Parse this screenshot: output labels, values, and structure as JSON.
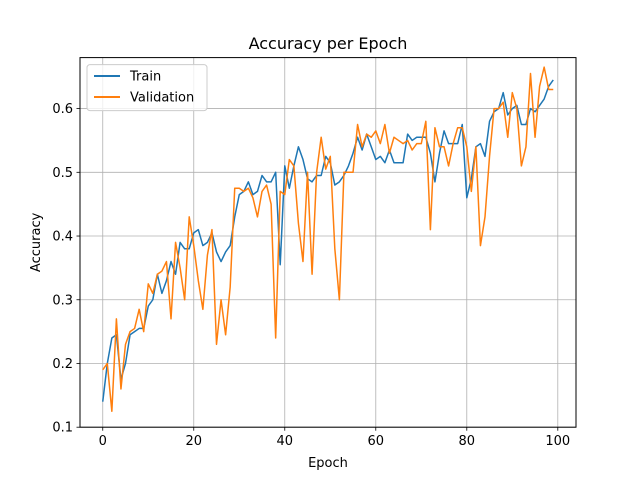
{
  "chart_data": {
    "type": "line",
    "title": "Accuracy per Epoch",
    "xlabel": "Epoch",
    "ylabel": "Accuracy",
    "xlim": [
      -5,
      104
    ],
    "ylim": [
      0.1,
      0.68
    ],
    "xticks": [
      0,
      20,
      40,
      60,
      80,
      100
    ],
    "yticks": [
      0.1,
      0.2,
      0.3,
      0.4,
      0.5,
      0.6
    ],
    "grid": true,
    "legend_position": "top-left",
    "series": [
      {
        "name": "Train",
        "color": "#1f77b4",
        "x": [
          0,
          1,
          2,
          3,
          4,
          5,
          6,
          7,
          8,
          9,
          10,
          11,
          12,
          13,
          14,
          15,
          16,
          17,
          18,
          19,
          20,
          21,
          22,
          23,
          24,
          25,
          26,
          27,
          28,
          29,
          30,
          31,
          32,
          33,
          34,
          35,
          36,
          37,
          38,
          39,
          40,
          41,
          42,
          43,
          44,
          45,
          46,
          47,
          48,
          49,
          50,
          51,
          52,
          53,
          54,
          55,
          56,
          57,
          58,
          59,
          60,
          61,
          62,
          63,
          64,
          65,
          66,
          67,
          68,
          69,
          70,
          71,
          72,
          73,
          74,
          75,
          76,
          77,
          78,
          79,
          80,
          81,
          82,
          83,
          84,
          85,
          86,
          87,
          88,
          89,
          90,
          91,
          92,
          93,
          94,
          95,
          96,
          97,
          98,
          99
        ],
        "values": [
          0.14,
          0.2,
          0.24,
          0.245,
          0.175,
          0.2,
          0.245,
          0.25,
          0.255,
          0.255,
          0.29,
          0.3,
          0.34,
          0.31,
          0.33,
          0.36,
          0.34,
          0.39,
          0.38,
          0.38,
          0.405,
          0.41,
          0.385,
          0.39,
          0.405,
          0.375,
          0.36,
          0.375,
          0.385,
          0.43,
          0.465,
          0.47,
          0.485,
          0.465,
          0.47,
          0.495,
          0.485,
          0.485,
          0.5,
          0.355,
          0.51,
          0.475,
          0.51,
          0.54,
          0.52,
          0.49,
          0.485,
          0.495,
          0.495,
          0.525,
          0.515,
          0.48,
          0.485,
          0.495,
          0.51,
          0.53,
          0.555,
          0.535,
          0.56,
          0.54,
          0.52,
          0.525,
          0.515,
          0.535,
          0.515,
          0.515,
          0.515,
          0.56,
          0.55,
          0.555,
          0.555,
          0.555,
          0.53,
          0.485,
          0.53,
          0.565,
          0.545,
          0.545,
          0.545,
          0.575,
          0.46,
          0.49,
          0.54,
          0.545,
          0.525,
          0.58,
          0.595,
          0.6,
          0.625,
          0.59,
          0.6,
          0.605,
          0.575,
          0.575,
          0.6,
          0.595,
          0.605,
          0.615,
          0.635,
          0.645
        ]
      },
      {
        "name": "Validation",
        "color": "#ff7f0e",
        "x": [
          0,
          1,
          2,
          3,
          4,
          5,
          6,
          7,
          8,
          9,
          10,
          11,
          12,
          13,
          14,
          15,
          16,
          17,
          18,
          19,
          20,
          21,
          22,
          23,
          24,
          25,
          26,
          27,
          28,
          29,
          30,
          31,
          32,
          33,
          34,
          35,
          36,
          37,
          38,
          39,
          40,
          41,
          42,
          43,
          44,
          45,
          46,
          47,
          48,
          49,
          50,
          51,
          52,
          53,
          54,
          55,
          56,
          57,
          58,
          59,
          60,
          61,
          62,
          63,
          64,
          65,
          66,
          67,
          68,
          69,
          70,
          71,
          72,
          73,
          74,
          75,
          76,
          77,
          78,
          79,
          80,
          81,
          82,
          83,
          84,
          85,
          86,
          87,
          88,
          89,
          90,
          91,
          92,
          93,
          94,
          95,
          96,
          97,
          98,
          99
        ],
        "values": [
          0.19,
          0.2,
          0.125,
          0.27,
          0.16,
          0.23,
          0.25,
          0.255,
          0.285,
          0.25,
          0.325,
          0.31,
          0.34,
          0.345,
          0.36,
          0.27,
          0.39,
          0.35,
          0.3,
          0.43,
          0.385,
          0.33,
          0.285,
          0.37,
          0.41,
          0.23,
          0.3,
          0.245,
          0.32,
          0.475,
          0.475,
          0.47,
          0.475,
          0.46,
          0.43,
          0.47,
          0.48,
          0.45,
          0.24,
          0.47,
          0.465,
          0.52,
          0.51,
          0.42,
          0.36,
          0.5,
          0.34,
          0.5,
          0.555,
          0.505,
          0.525,
          0.38,
          0.3,
          0.5,
          0.5,
          0.5,
          0.575,
          0.54,
          0.56,
          0.555,
          0.565,
          0.545,
          0.575,
          0.53,
          0.555,
          0.55,
          0.545,
          0.55,
          0.535,
          0.545,
          0.545,
          0.58,
          0.41,
          0.57,
          0.54,
          0.54,
          0.51,
          0.545,
          0.57,
          0.57,
          0.54,
          0.47,
          0.54,
          0.385,
          0.43,
          0.525,
          0.6,
          0.6,
          0.61,
          0.555,
          0.625,
          0.6,
          0.51,
          0.54,
          0.655,
          0.555,
          0.635,
          0.665,
          0.63,
          0.63
        ]
      }
    ]
  }
}
